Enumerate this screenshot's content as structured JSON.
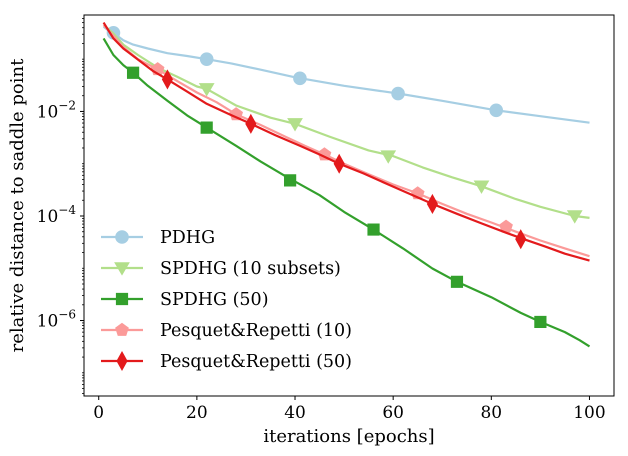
{
  "chart_data": {
    "type": "line",
    "title": "",
    "xlabel": "iterations [epochs]",
    "ylabel": "relative distance to saddle point",
    "xlim": [
      -3,
      105
    ],
    "ylim": [
      3.6e-08,
      0.7
    ],
    "yscale": "log",
    "x_ticks": [
      0,
      20,
      40,
      60,
      80,
      100
    ],
    "x_tick_labels": [
      "0",
      "20",
      "40",
      "60",
      "80",
      "100"
    ],
    "y_ticks": [
      1e-06,
      0.0001,
      0.01
    ],
    "y_tick_labels": [
      {
        "base": "10",
        "exp": "−6"
      },
      {
        "base": "10",
        "exp": "−4"
      },
      {
        "base": "10",
        "exp": "−2"
      }
    ],
    "legend_position": "bottom-left",
    "series": [
      {
        "name": "PDHG",
        "color": "#a6cee3",
        "marker": "circle",
        "x": [
          1,
          2,
          3,
          4,
          5,
          7,
          10,
          14,
          18,
          22,
          27,
          33,
          40,
          50,
          61,
          70,
          81,
          90,
          100
        ],
        "y": [
          0.42,
          0.35,
          0.32,
          0.27,
          0.23,
          0.19,
          0.16,
          0.13,
          0.115,
          0.1,
          0.083,
          0.063,
          0.045,
          0.031,
          0.022,
          0.016,
          0.0105,
          0.0081,
          0.0061
        ],
        "markers": [
          [
            3,
            0.32
          ],
          [
            22,
            0.1
          ],
          [
            41,
            0.043
          ],
          [
            61,
            0.022
          ],
          [
            81,
            0.0105
          ]
        ]
      },
      {
        "name": "SPDHG (10 subsets)",
        "color": "#b2df8a",
        "marker": "triangle-down",
        "x": [
          1,
          3,
          5,
          8,
          12,
          16,
          20,
          22,
          28,
          35,
          40,
          47,
          55,
          60,
          66,
          72,
          78,
          85,
          90,
          97,
          100
        ],
        "y": [
          0.45,
          0.31,
          0.19,
          0.12,
          0.069,
          0.046,
          0.03,
          0.027,
          0.013,
          0.0076,
          0.0058,
          0.0033,
          0.0018,
          0.0014,
          0.00085,
          0.00055,
          0.00037,
          0.00021,
          0.00015,
          0.0001,
          9.2e-05
        ],
        "markers": [
          [
            22,
            0.027
          ],
          [
            40,
            0.0058
          ],
          [
            59,
            0.0014
          ],
          [
            78,
            0.00037
          ],
          [
            97,
            0.0001
          ]
        ]
      },
      {
        "name": "SPDHG (50)",
        "color": "#33a02c",
        "marker": "square",
        "x": [
          1,
          3,
          5,
          7,
          10,
          14,
          18,
          22,
          28,
          33,
          38,
          45,
          50,
          56,
          62,
          68,
          73,
          80,
          86,
          90,
          95,
          98,
          100
        ],
        "y": [
          0.25,
          0.12,
          0.077,
          0.055,
          0.031,
          0.016,
          0.0084,
          0.0049,
          0.0022,
          0.0011,
          0.00058,
          0.00025,
          0.00012,
          5.5e-05,
          2.4e-05,
          9.9e-06,
          5.5e-06,
          2.8e-06,
          1.4e-06,
          9.4e-07,
          6e-07,
          4.2e-07,
          3.2e-07
        ],
        "markers": [
          [
            7,
            0.055
          ],
          [
            22,
            0.0049
          ],
          [
            39,
            0.00048
          ],
          [
            56,
            5.5e-05
          ],
          [
            73,
            5.5e-06
          ],
          [
            90,
            9.4e-07
          ]
        ]
      },
      {
        "name": "Pesquet&Repetti (10)",
        "color": "#fb9a99",
        "marker": "pentagon",
        "x": [
          1,
          3,
          5,
          8,
          12,
          16,
          20,
          24,
          28,
          33,
          38,
          42,
          46,
          50,
          55,
          60,
          65,
          70,
          75,
          80,
          85,
          90,
          95,
          100
        ],
        "y": [
          0.45,
          0.28,
          0.17,
          0.1,
          0.064,
          0.038,
          0.023,
          0.015,
          0.0088,
          0.0055,
          0.0033,
          0.0022,
          0.0015,
          0.001,
          0.00063,
          0.0004,
          0.00027,
          0.00017,
          0.00011,
          7.5e-05,
          5e-05,
          3.4e-05,
          2.4e-05,
          1.7e-05
        ],
        "markers": [
          [
            12,
            0.064
          ],
          [
            28,
            0.0088
          ],
          [
            46,
            0.0015
          ],
          [
            65,
            0.00027
          ],
          [
            83,
            6.2e-05
          ]
        ]
      },
      {
        "name": "Pesquet&Repetti (50)",
        "color": "#e31a1c",
        "marker": "thin-diamond",
        "x": [
          1,
          3,
          5,
          8,
          11,
          14,
          18,
          22,
          27,
          31,
          36,
          41,
          45,
          49,
          54,
          59,
          64,
          68,
          73,
          78,
          83,
          87,
          91,
          95,
          100
        ],
        "y": [
          0.5,
          0.25,
          0.16,
          0.098,
          0.06,
          0.041,
          0.024,
          0.014,
          0.0085,
          0.0058,
          0.0035,
          0.0022,
          0.0015,
          0.001,
          0.00065,
          0.0004,
          0.00025,
          0.00017,
          0.00011,
          7.2e-05,
          4.8e-05,
          3.5e-05,
          2.6e-05,
          1.9e-05,
          1.4e-05
        ],
        "markers": [
          [
            14,
            0.041
          ],
          [
            31,
            0.0058
          ],
          [
            49,
            0.001
          ],
          [
            68,
            0.00017
          ],
          [
            86,
            3.6e-05
          ]
        ]
      }
    ]
  }
}
